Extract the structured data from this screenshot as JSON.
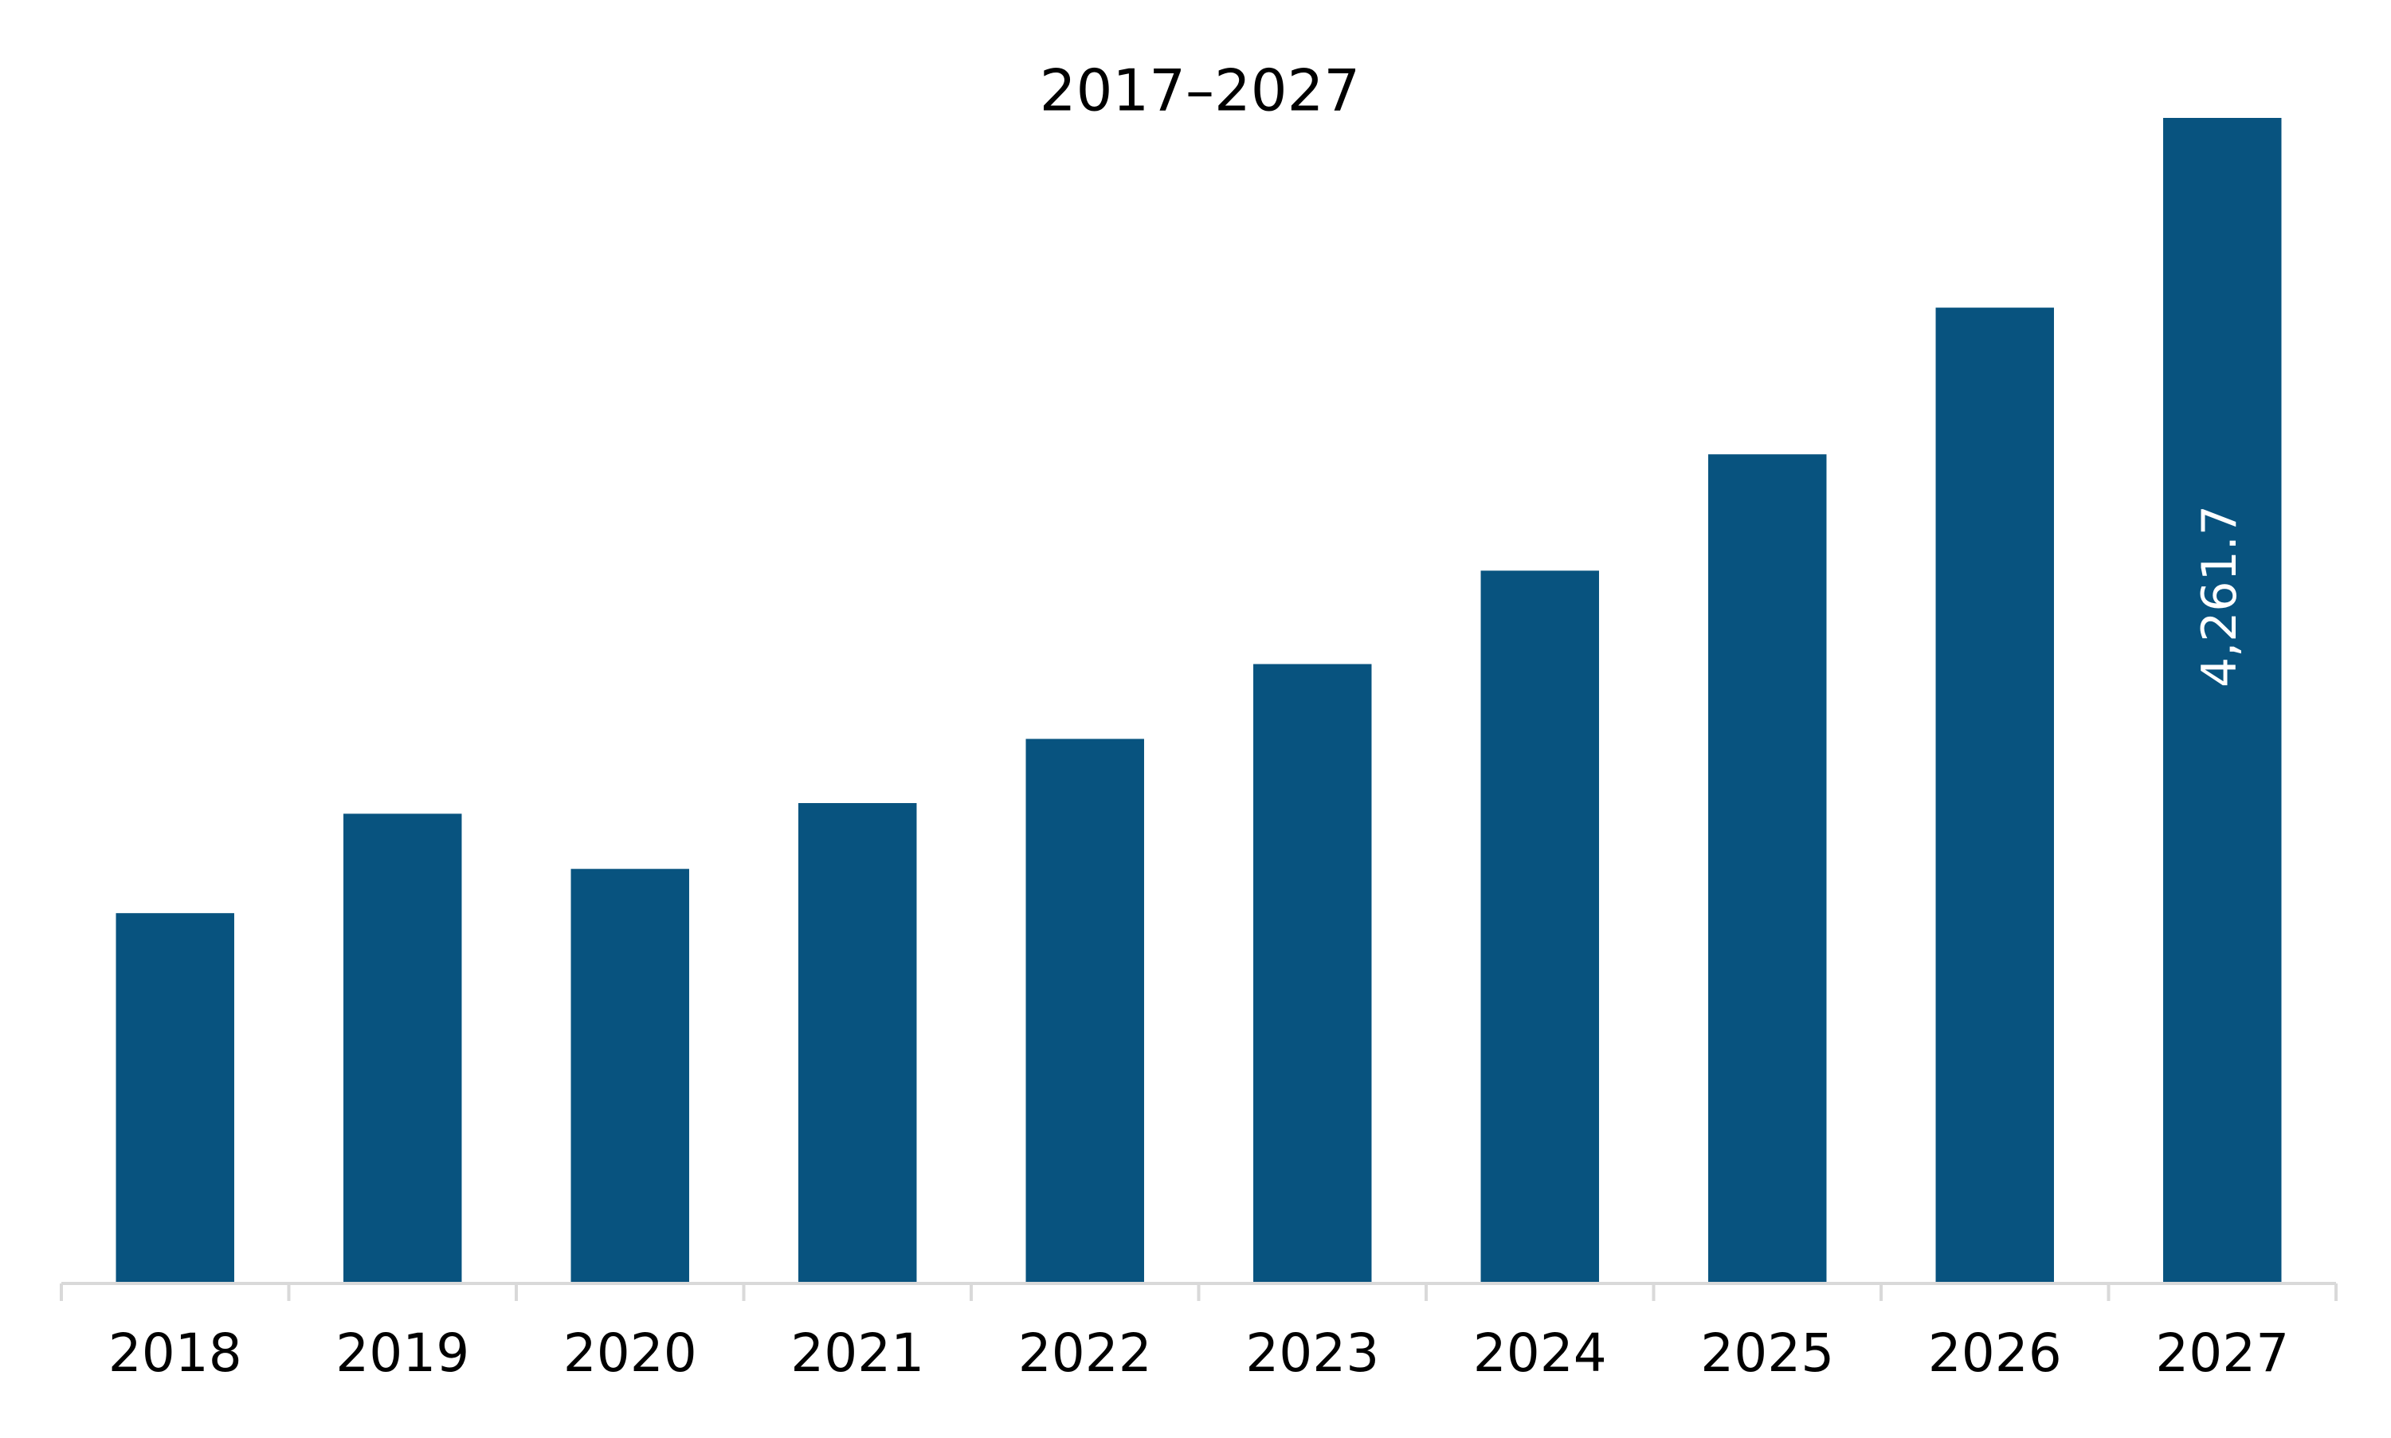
{
  "chart_data": {
    "type": "bar",
    "title": "2017–2027",
    "categories": [
      "2018",
      "2019",
      "2020",
      "2021",
      "2022",
      "2023",
      "2024",
      "2025",
      "2026",
      "2027"
    ],
    "values": [
      1350,
      1714,
      1512,
      1753,
      1988,
      2262,
      2604,
      3030,
      3567,
      4261.7
    ],
    "value_labels": [
      null,
      null,
      null,
      null,
      null,
      null,
      null,
      null,
      null,
      "4,261.7"
    ],
    "color": "#08537f"
  }
}
